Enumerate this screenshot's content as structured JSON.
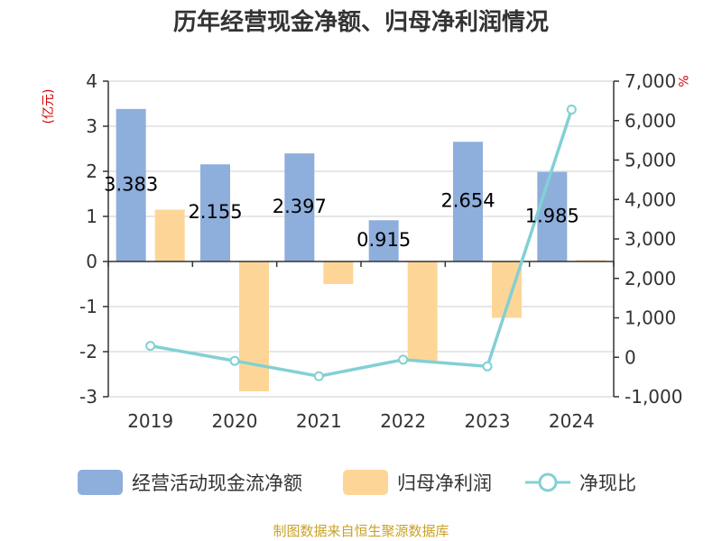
{
  "chart_data": {
    "type": "bar",
    "title": "历年经营现金净额、归母净利润情况",
    "categories": [
      "2019",
      "2020",
      "2021",
      "2022",
      "2023",
      "2024"
    ],
    "left_axis": {
      "unit": "(亿元)",
      "range": [
        -3,
        4
      ],
      "ticks": [
        "-3",
        "-2",
        "-1",
        "0",
        "1",
        "2",
        "3",
        "4"
      ]
    },
    "right_axis": {
      "unit": "%",
      "range": [
        -1000,
        7000
      ],
      "ticks": [
        "-1,000",
        "0",
        "1,000",
        "2,000",
        "3,000",
        "4,000",
        "5,000",
        "6,000",
        "7,000"
      ]
    },
    "series": [
      {
        "name": "经营活动现金流净额",
        "kind": "bar",
        "axis": "left",
        "color": "#8eaedc",
        "values": [
          3.383,
          2.155,
          2.397,
          0.915,
          2.654,
          1.985
        ],
        "labels": [
          "3.383",
          "2.155",
          "2.397",
          "0.915",
          "2.654",
          "1.985"
        ]
      },
      {
        "name": "归母净利润",
        "kind": "bar",
        "axis": "left",
        "color": "#fdd697",
        "values": [
          1.15,
          -2.88,
          -0.5,
          -2.2,
          -1.25,
          0.03
        ]
      },
      {
        "name": "净现比",
        "kind": "line",
        "axis": "right",
        "color": "#82d0d4",
        "values": [
          290,
          -90,
          -480,
          -60,
          -230,
          6280
        ]
      }
    ],
    "grid": true,
    "legend_position": "bottom",
    "source": "制图数据来自恒生聚源数据库"
  }
}
